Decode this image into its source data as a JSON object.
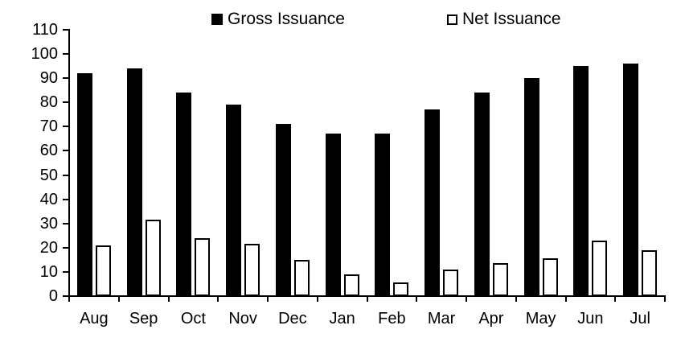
{
  "chart_data": {
    "type": "bar",
    "title": "",
    "categories": [
      "Aug",
      "Sep",
      "Oct",
      "Nov",
      "Dec",
      "Jan",
      "Feb",
      "Mar",
      "Apr",
      "May",
      "Jun",
      "Jul"
    ],
    "series": [
      {
        "name": "Gross Issuance",
        "fill": "#000000",
        "values": [
          92,
          94,
          84,
          79,
          71,
          67,
          67,
          77,
          84,
          90,
          95,
          96
        ]
      },
      {
        "name": "Net Issuance",
        "fill": "#ffffff",
        "border": "#000000",
        "values": [
          21,
          31.5,
          24,
          21.5,
          15,
          9,
          5.5,
          11,
          13.5,
          15.5,
          23,
          19
        ]
      }
    ],
    "ylim": [
      0,
      110
    ],
    "yticks": [
      0,
      10,
      20,
      30,
      40,
      50,
      60,
      70,
      80,
      90,
      100,
      110
    ],
    "xlabel": "",
    "ylabel": "",
    "grid": false,
    "legend_position": "top",
    "axis_color": "#000000",
    "background": "#ffffff"
  }
}
